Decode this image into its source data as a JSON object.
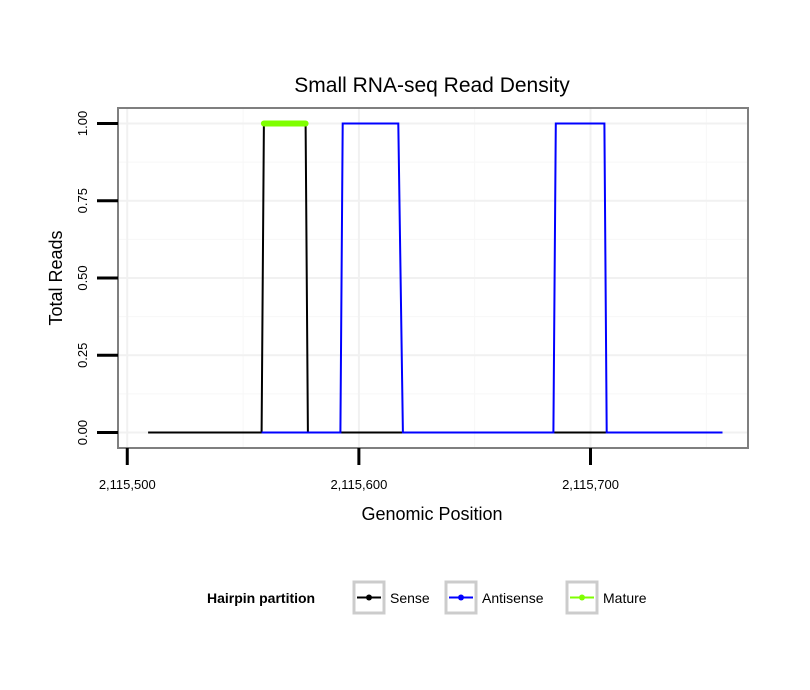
{
  "chart_data": {
    "type": "line",
    "title": "Small RNA-seq Read Density",
    "xlabel": "Genomic Position",
    "ylabel": "Total Reads",
    "xlim": [
      2115496,
      2115768
    ],
    "ylim": [
      -0.05,
      1.05
    ],
    "x_ticks": [
      2115500,
      2115600,
      2115700
    ],
    "x_tick_labels": [
      "2,115,500",
      "2,115,600",
      "2,115,700"
    ],
    "y_ticks": [
      0,
      0.25,
      0.5,
      0.75,
      1.0
    ],
    "y_tick_labels": [
      "0.00",
      "0.25",
      "0.50",
      "0.75",
      "1.00"
    ],
    "grid": true,
    "legend": {
      "title": "Hairpin partition",
      "position": "bottom",
      "entries": [
        {
          "label": "Sense",
          "color": "#000000"
        },
        {
          "label": "Antisense",
          "color": "#0000ff"
        },
        {
          "label": "Mature",
          "color": "#7fff00"
        }
      ]
    },
    "series": [
      {
        "name": "Sense",
        "color": "#000000",
        "x": [
          2115509,
          2115558,
          2115559,
          2115577,
          2115578,
          2115757
        ],
        "y": [
          0,
          0,
          1,
          1,
          0,
          0
        ]
      },
      {
        "name": "Antisense",
        "color": "#0000ff",
        "x": [
          2115558,
          2115592,
          2115593,
          2115617,
          2115619,
          2115684,
          2115685,
          2115706,
          2115707,
          2115757
        ],
        "y": [
          0,
          0,
          1,
          1,
          0,
          0,
          1,
          1,
          0,
          0
        ]
      },
      {
        "name": "Mature",
        "color": "#7fff00",
        "x": [
          2115559,
          2115577
        ],
        "y": [
          1,
          1
        ]
      }
    ]
  }
}
